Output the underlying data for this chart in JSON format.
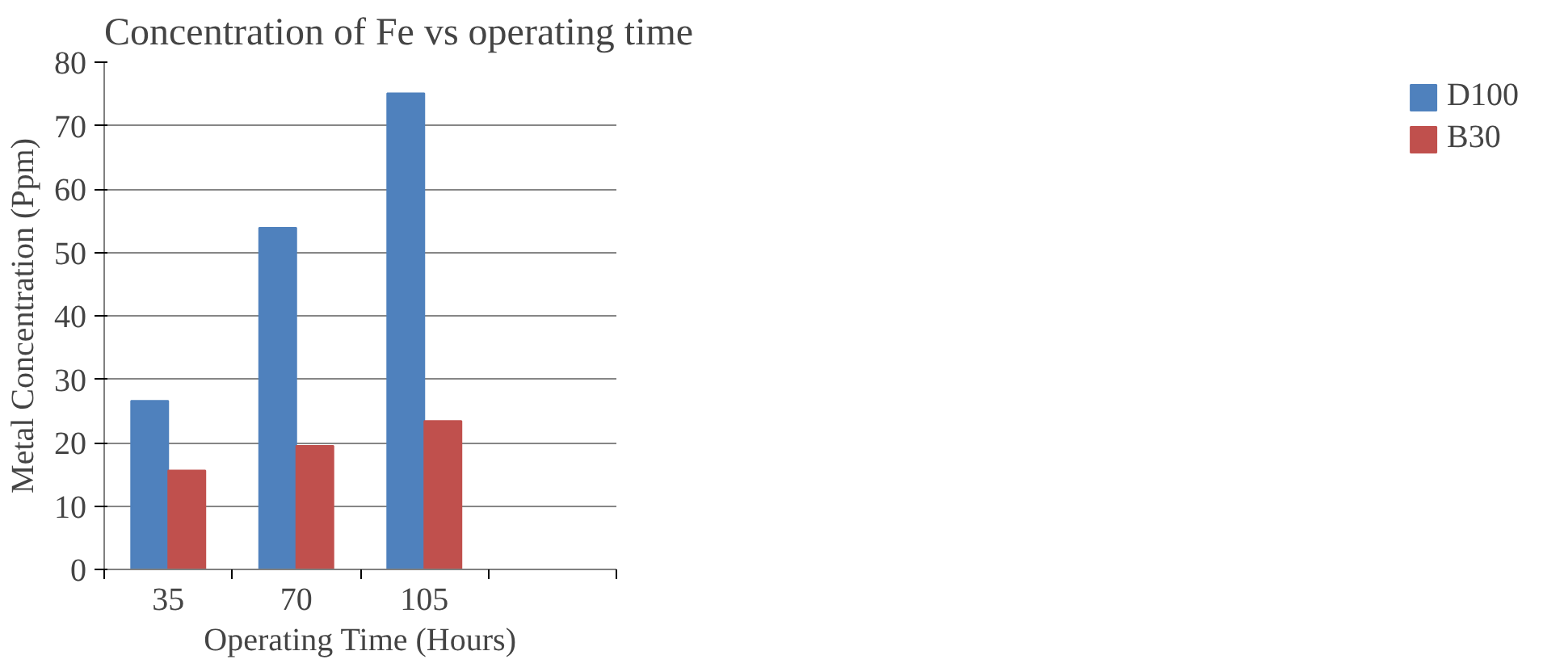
{
  "chart_data": {
    "type": "bar",
    "title": "Concentration of Fe vs operating time",
    "xlabel": "Operating Time (Hours)",
    "ylabel": "Metal Concentration (Ppm)",
    "categories": [
      "35",
      "70",
      "105",
      null
    ],
    "series": [
      {
        "name": "D100",
        "color": "#4f81bd",
        "values": [
          26.6,
          53.9,
          75.1,
          null
        ]
      },
      {
        "name": "B30",
        "color": "#c0504d",
        "values": [
          15.6,
          19.5,
          23.4,
          null
        ]
      }
    ],
    "ylim": [
      0,
      80
    ],
    "yticks": [
      0,
      10,
      20,
      30,
      40,
      50,
      60,
      70,
      80
    ],
    "grid": "y",
    "legend": "right"
  }
}
